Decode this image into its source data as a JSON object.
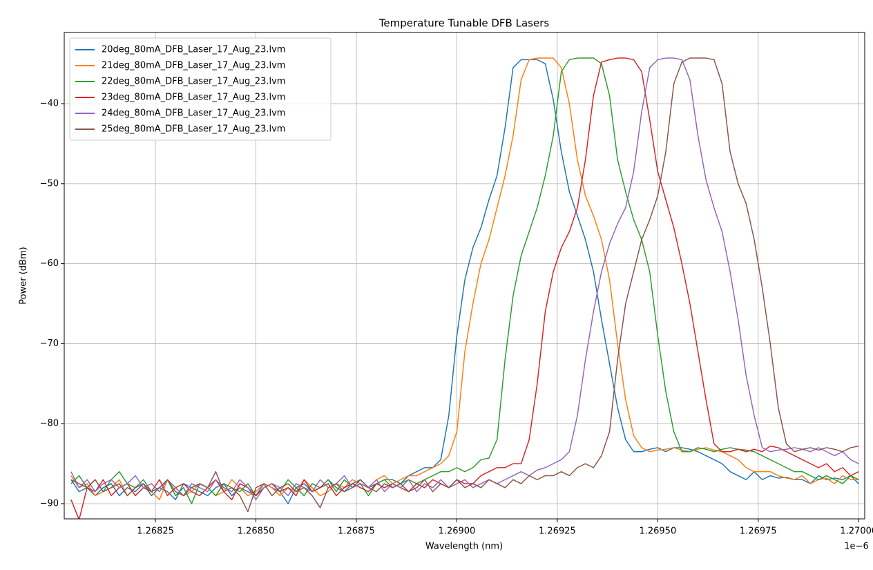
{
  "chart_data": {
    "type": "line",
    "title": "Temperature Tunable DFB Lasers",
    "x_label": "Wavelength (nm)",
    "y_label": "Power (dBm)",
    "x_offset_label": "1e−6",
    "grid": true,
    "legend": "upper left",
    "xlim": [
      1.268023,
      1.270015
    ],
    "ylim": [
      -91.9,
      -31.1
    ],
    "xticks": [
      1.26825,
      {
        "value": 1.2685,
        "label": "1.26850"
      },
      1.26875,
      {
        "value": 1.269,
        "label": "1.26900"
      },
      1.26925,
      {
        "value": 1.2695,
        "label": "1.26950"
      },
      1.26975,
      {
        "value": 1.27,
        "label": "1.27000"
      }
    ],
    "yticks": [
      {
        "value": -90,
        "label": "−90"
      },
      {
        "value": -80,
        "label": "−80"
      },
      {
        "value": -70,
        "label": "−70"
      },
      {
        "value": -60,
        "label": "−60"
      },
      {
        "value": -50,
        "label": "−50"
      },
      {
        "value": -40,
        "label": "−40"
      }
    ],
    "x": [
      1.26804,
      1.26806,
      1.26808,
      1.2681,
      1.26812,
      1.26814,
      1.26816,
      1.26818,
      1.2682,
      1.26822,
      1.26824,
      1.26826,
      1.26828,
      1.2683,
      1.26832,
      1.26834,
      1.26836,
      1.26838,
      1.2684,
      1.26842,
      1.26844,
      1.26846,
      1.26848,
      1.2685,
      1.26852,
      1.26854,
      1.26856,
      1.26858,
      1.2686,
      1.26862,
      1.26864,
      1.26866,
      1.26868,
      1.2687,
      1.26872,
      1.26874,
      1.26876,
      1.26878,
      1.2688,
      1.26882,
      1.26884,
      1.26886,
      1.26888,
      1.2689,
      1.26892,
      1.26894,
      1.26896,
      1.26898,
      1.269,
      1.26902,
      1.26904,
      1.26906,
      1.26908,
      1.2691,
      1.26912,
      1.26914,
      1.26916,
      1.26918,
      1.2692,
      1.26922,
      1.26924,
      1.26926,
      1.26928,
      1.2693,
      1.26932,
      1.26934,
      1.26936,
      1.26938,
      1.2694,
      1.26942,
      1.26944,
      1.26946,
      1.26948,
      1.2695,
      1.26952,
      1.26954,
      1.26956,
      1.26958,
      1.2696,
      1.26962,
      1.26964,
      1.26966,
      1.26968,
      1.2697,
      1.26972,
      1.26974,
      1.26976,
      1.26978,
      1.2698,
      1.26982,
      1.26984,
      1.26986,
      1.26988,
      1.2699,
      1.26992,
      1.26994,
      1.26996,
      1.26998,
      1.27
    ],
    "series": [
      {
        "name": "20deg_80mA_DFB_Laser_17_Aug_23.lvm",
        "color": "#1f77b4",
        "values": [
          -87,
          -88.5,
          -88,
          -89,
          -88,
          -87.5,
          -89,
          -88,
          -88.5,
          -87.5,
          -89,
          -88,
          -88.5,
          -89.5,
          -87.5,
          -88,
          -88.5,
          -89,
          -88,
          -87.5,
          -89,
          -88,
          -88.5,
          -89,
          -87.5,
          -88,
          -88.5,
          -90,
          -88,
          -87.5,
          -88.5,
          -88,
          -87,
          -88,
          -88.5,
          -87.5,
          -87,
          -88,
          -87.5,
          -87,
          -87,
          -87.5,
          -86.5,
          -86,
          -85.5,
          -85.5,
          -84.5,
          -79,
          -69,
          -62,
          -58,
          -55.5,
          -52,
          -49,
          -43,
          -35.5,
          -34.5,
          -34.5,
          -34.5,
          -35,
          -39.5,
          -46,
          -51,
          -54,
          -57,
          -61,
          -67,
          -72.5,
          -78,
          -82,
          -83.5,
          -83.5,
          -83.2,
          -83,
          -83.5,
          -83,
          -83,
          -83.2,
          -83.5,
          -84,
          -84.5,
          -85,
          -86,
          -86.5,
          -87,
          -86,
          -87,
          -86.5,
          -86.8,
          -86.7,
          -87,
          -87,
          -87.5,
          -86.5,
          -87,
          -86.8,
          -87,
          -86.5,
          -87.5
        ]
      },
      {
        "name": "21deg_80mA_DFB_Laser_17_Aug_23.lvm",
        "color": "#ff7f0e",
        "values": [
          -86.5,
          -88,
          -87.5,
          -89,
          -88.5,
          -88,
          -87,
          -89,
          -88,
          -87.5,
          -88.5,
          -89.5,
          -87,
          -88,
          -89,
          -88.5,
          -87.5,
          -88,
          -89,
          -88.5,
          -87,
          -88,
          -89,
          -88.5,
          -87.5,
          -88,
          -89,
          -88,
          -88.5,
          -87,
          -88,
          -89,
          -88.5,
          -87.5,
          -88,
          -87,
          -87.5,
          -88,
          -87,
          -86.5,
          -87.5,
          -87,
          -86.5,
          -86.5,
          -86,
          -85.5,
          -85,
          -84,
          -81,
          -71,
          -65,
          -60,
          -57,
          -53,
          -49,
          -44,
          -37,
          -34.5,
          -34.3,
          -34.3,
          -34.3,
          -35.5,
          -40,
          -47,
          -51.5,
          -54,
          -57,
          -62,
          -70,
          -77,
          -81.5,
          -83,
          -83.5,
          -83.3,
          -83.2,
          -83,
          -83.3,
          -83.5,
          -83.2,
          -83,
          -83.3,
          -83.5,
          -84,
          -84.5,
          -85.5,
          -86,
          -86,
          -86,
          -86.5,
          -86.8,
          -87,
          -86.5,
          -87.5,
          -87,
          -86.8,
          -87.5,
          -86.5,
          -87,
          -87
        ]
      },
      {
        "name": "22deg_80mA_DFB_Laser_17_Aug_23.lvm",
        "color": "#2ca02c",
        "values": [
          -87.5,
          -86.5,
          -88,
          -87,
          -88.5,
          -87,
          -86,
          -87.5,
          -88,
          -87,
          -88.5,
          -88,
          -87,
          -89,
          -88,
          -90,
          -87.5,
          -88,
          -89,
          -87.5,
          -88,
          -88.5,
          -87.5,
          -89,
          -88,
          -87.5,
          -88.5,
          -87,
          -88,
          -89,
          -87.5,
          -88,
          -87,
          -88.5,
          -87,
          -88,
          -87.5,
          -89,
          -87.5,
          -87,
          -88,
          -87.5,
          -87,
          -87.5,
          -87,
          -86.5,
          -86,
          -86,
          -85.5,
          -86,
          -85.5,
          -84.5,
          -84.3,
          -82,
          -72,
          -64,
          -59,
          -56,
          -53,
          -49,
          -44,
          -36,
          -34.5,
          -34.3,
          -34.3,
          -34.3,
          -35,
          -39,
          -47,
          -51,
          -54.5,
          -57,
          -61,
          -69,
          -76,
          -81,
          -83.5,
          -83.5,
          -83,
          -83.2,
          -83.5,
          -83.2,
          -83,
          -83.2,
          -83.3,
          -83.5,
          -84,
          -84.5,
          -85,
          -85.5,
          -86,
          -86,
          -86.5,
          -87,
          -86.5,
          -87,
          -87.5,
          -86.5,
          -87
        ]
      },
      {
        "name": "23deg_80mA_DFB_Laser_17_Aug_23.lvm",
        "color": "#d62728",
        "values": [
          -89.5,
          -92,
          -88,
          -88.5,
          -87,
          -89,
          -88,
          -87.5,
          -89,
          -88,
          -88.5,
          -87,
          -89,
          -88,
          -87.5,
          -88.5,
          -89,
          -88,
          -87,
          -88.5,
          -89.5,
          -87.5,
          -88,
          -89,
          -88,
          -87.5,
          -88.5,
          -88,
          -89,
          -87,
          -88.5,
          -88,
          -87.5,
          -89,
          -88,
          -87.5,
          -88,
          -88.5,
          -87.5,
          -88,
          -87.5,
          -88,
          -88.5,
          -87.5,
          -88,
          -87,
          -87.5,
          -88,
          -87,
          -87.5,
          -87.5,
          -86.5,
          -86,
          -85.5,
          -85.5,
          -85,
          -85,
          -82,
          -75,
          -66,
          -61,
          -58,
          -56,
          -53,
          -47,
          -39,
          -34.8,
          -34.5,
          -34.3,
          -34.3,
          -34.5,
          -36,
          -42,
          -48.5,
          -52,
          -55.5,
          -60,
          -65,
          -71,
          -77,
          -82.5,
          -83.5,
          -83.5,
          -83.2,
          -83.5,
          -83.2,
          -83.5,
          -82.8,
          -83,
          -83.5,
          -84,
          -84.5,
          -85,
          -85.5,
          -85,
          -86,
          -85.5,
          -86.5,
          -86
        ]
      },
      {
        "name": "24deg_80mA_DFB_Laser_17_Aug_23.lvm",
        "color": "#9467bd",
        "values": [
          -86,
          -88,
          -87,
          -88.5,
          -87.5,
          -87,
          -88,
          -87.5,
          -86.5,
          -88,
          -87.5,
          -88.5,
          -87,
          -88,
          -89,
          -87.5,
          -88,
          -88.5,
          -87,
          -88,
          -88.5,
          -87,
          -88,
          -89.5,
          -88,
          -87.5,
          -88,
          -89,
          -87.5,
          -88,
          -88.5,
          -87,
          -88,
          -87.5,
          -86.5,
          -88,
          -87.5,
          -88,
          -87,
          -88.5,
          -87.5,
          -88,
          -87,
          -88.5,
          -87.5,
          -88,
          -87,
          -88,
          -87.5,
          -87,
          -88,
          -87.5,
          -87,
          -87.5,
          -87,
          -86.5,
          -86,
          -86.5,
          -85.8,
          -85.5,
          -85,
          -84.5,
          -83.5,
          -79,
          -72,
          -66,
          -61,
          -57.5,
          -55,
          -53,
          -48.5,
          -41,
          -35.5,
          -34.5,
          -34.3,
          -34.3,
          -34.5,
          -37,
          -44,
          -49.5,
          -53,
          -56,
          -61,
          -67,
          -74,
          -79,
          -83,
          -83.5,
          -83.3,
          -83.2,
          -83,
          -83.2,
          -83.5,
          -83,
          -83.5,
          -84,
          -83.5,
          -84.5,
          -85
        ]
      },
      {
        "name": "25deg_80mA_DFB_Laser_17_Aug_23.lvm",
        "color": "#8c564b",
        "values": [
          -87,
          -87.5,
          -88,
          -87,
          -88.5,
          -88,
          -87.5,
          -89,
          -88,
          -87.5,
          -88.5,
          -88,
          -87,
          -88.5,
          -89,
          -88,
          -87.5,
          -88,
          -86,
          -88.5,
          -88,
          -89,
          -91,
          -88,
          -87.5,
          -89,
          -88,
          -87.5,
          -88.5,
          -88,
          -89,
          -90.5,
          -88,
          -87.5,
          -88.5,
          -88,
          -87,
          -88,
          -88.5,
          -87.5,
          -88,
          -87.5,
          -88.5,
          -88,
          -87,
          -88.5,
          -87.5,
          -88,
          -87,
          -88,
          -87.5,
          -88,
          -87,
          -87.5,
          -88,
          -87,
          -87.5,
          -86.5,
          -87,
          -86.5,
          -86.5,
          -86,
          -86.5,
          -85.5,
          -85,
          -85.5,
          -84,
          -81,
          -72,
          -65,
          -61,
          -57,
          -54.5,
          -51.5,
          -46,
          -37.5,
          -34.8,
          -34.3,
          -34.3,
          -34.3,
          -34.5,
          -37.5,
          -46,
          -50,
          -52.5,
          -57,
          -63,
          -70,
          -78,
          -82.5,
          -83.5,
          -83.2,
          -83,
          -83.3,
          -83,
          -83.2,
          -83.5,
          -83,
          -82.8
        ]
      }
    ]
  }
}
